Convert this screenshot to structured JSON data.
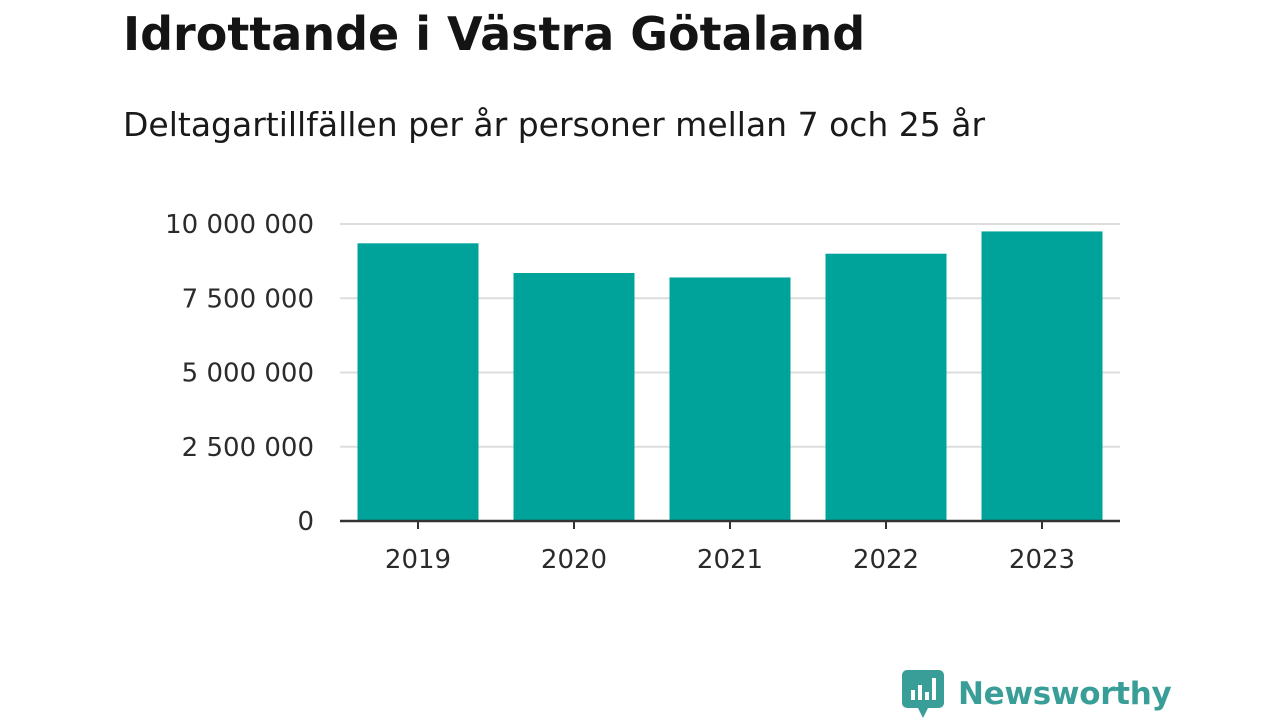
{
  "header": {
    "title": "Idrottande i Västra Götaland",
    "subtitle": "Deltagartillfällen per år personer mellan 7 och 25 år"
  },
  "brand": {
    "name": "Newsworthy",
    "icon": "newsworthy-logo-icon",
    "color": "#3a9e98"
  },
  "colors": {
    "bar": "#00a39a",
    "grid": "#dddddd",
    "axis": "#333333"
  },
  "chart_data": {
    "type": "bar",
    "title": "Idrottande i Västra Götaland",
    "subtitle": "Deltagartillfällen per år personer mellan 7 och 25 år",
    "xlabel": "",
    "ylabel": "",
    "categories": [
      "2019",
      "2020",
      "2021",
      "2022",
      "2023"
    ],
    "values": [
      9350000,
      8350000,
      8200000,
      9000000,
      9750000
    ],
    "ylim": [
      0,
      10000000
    ],
    "yticks": [
      0,
      2500000,
      5000000,
      7500000,
      10000000
    ],
    "ytick_labels": [
      "0",
      "2 500 000",
      "5 000 000",
      "7 500 000",
      "10 000 000"
    ],
    "grid": true,
    "legend": "none"
  }
}
